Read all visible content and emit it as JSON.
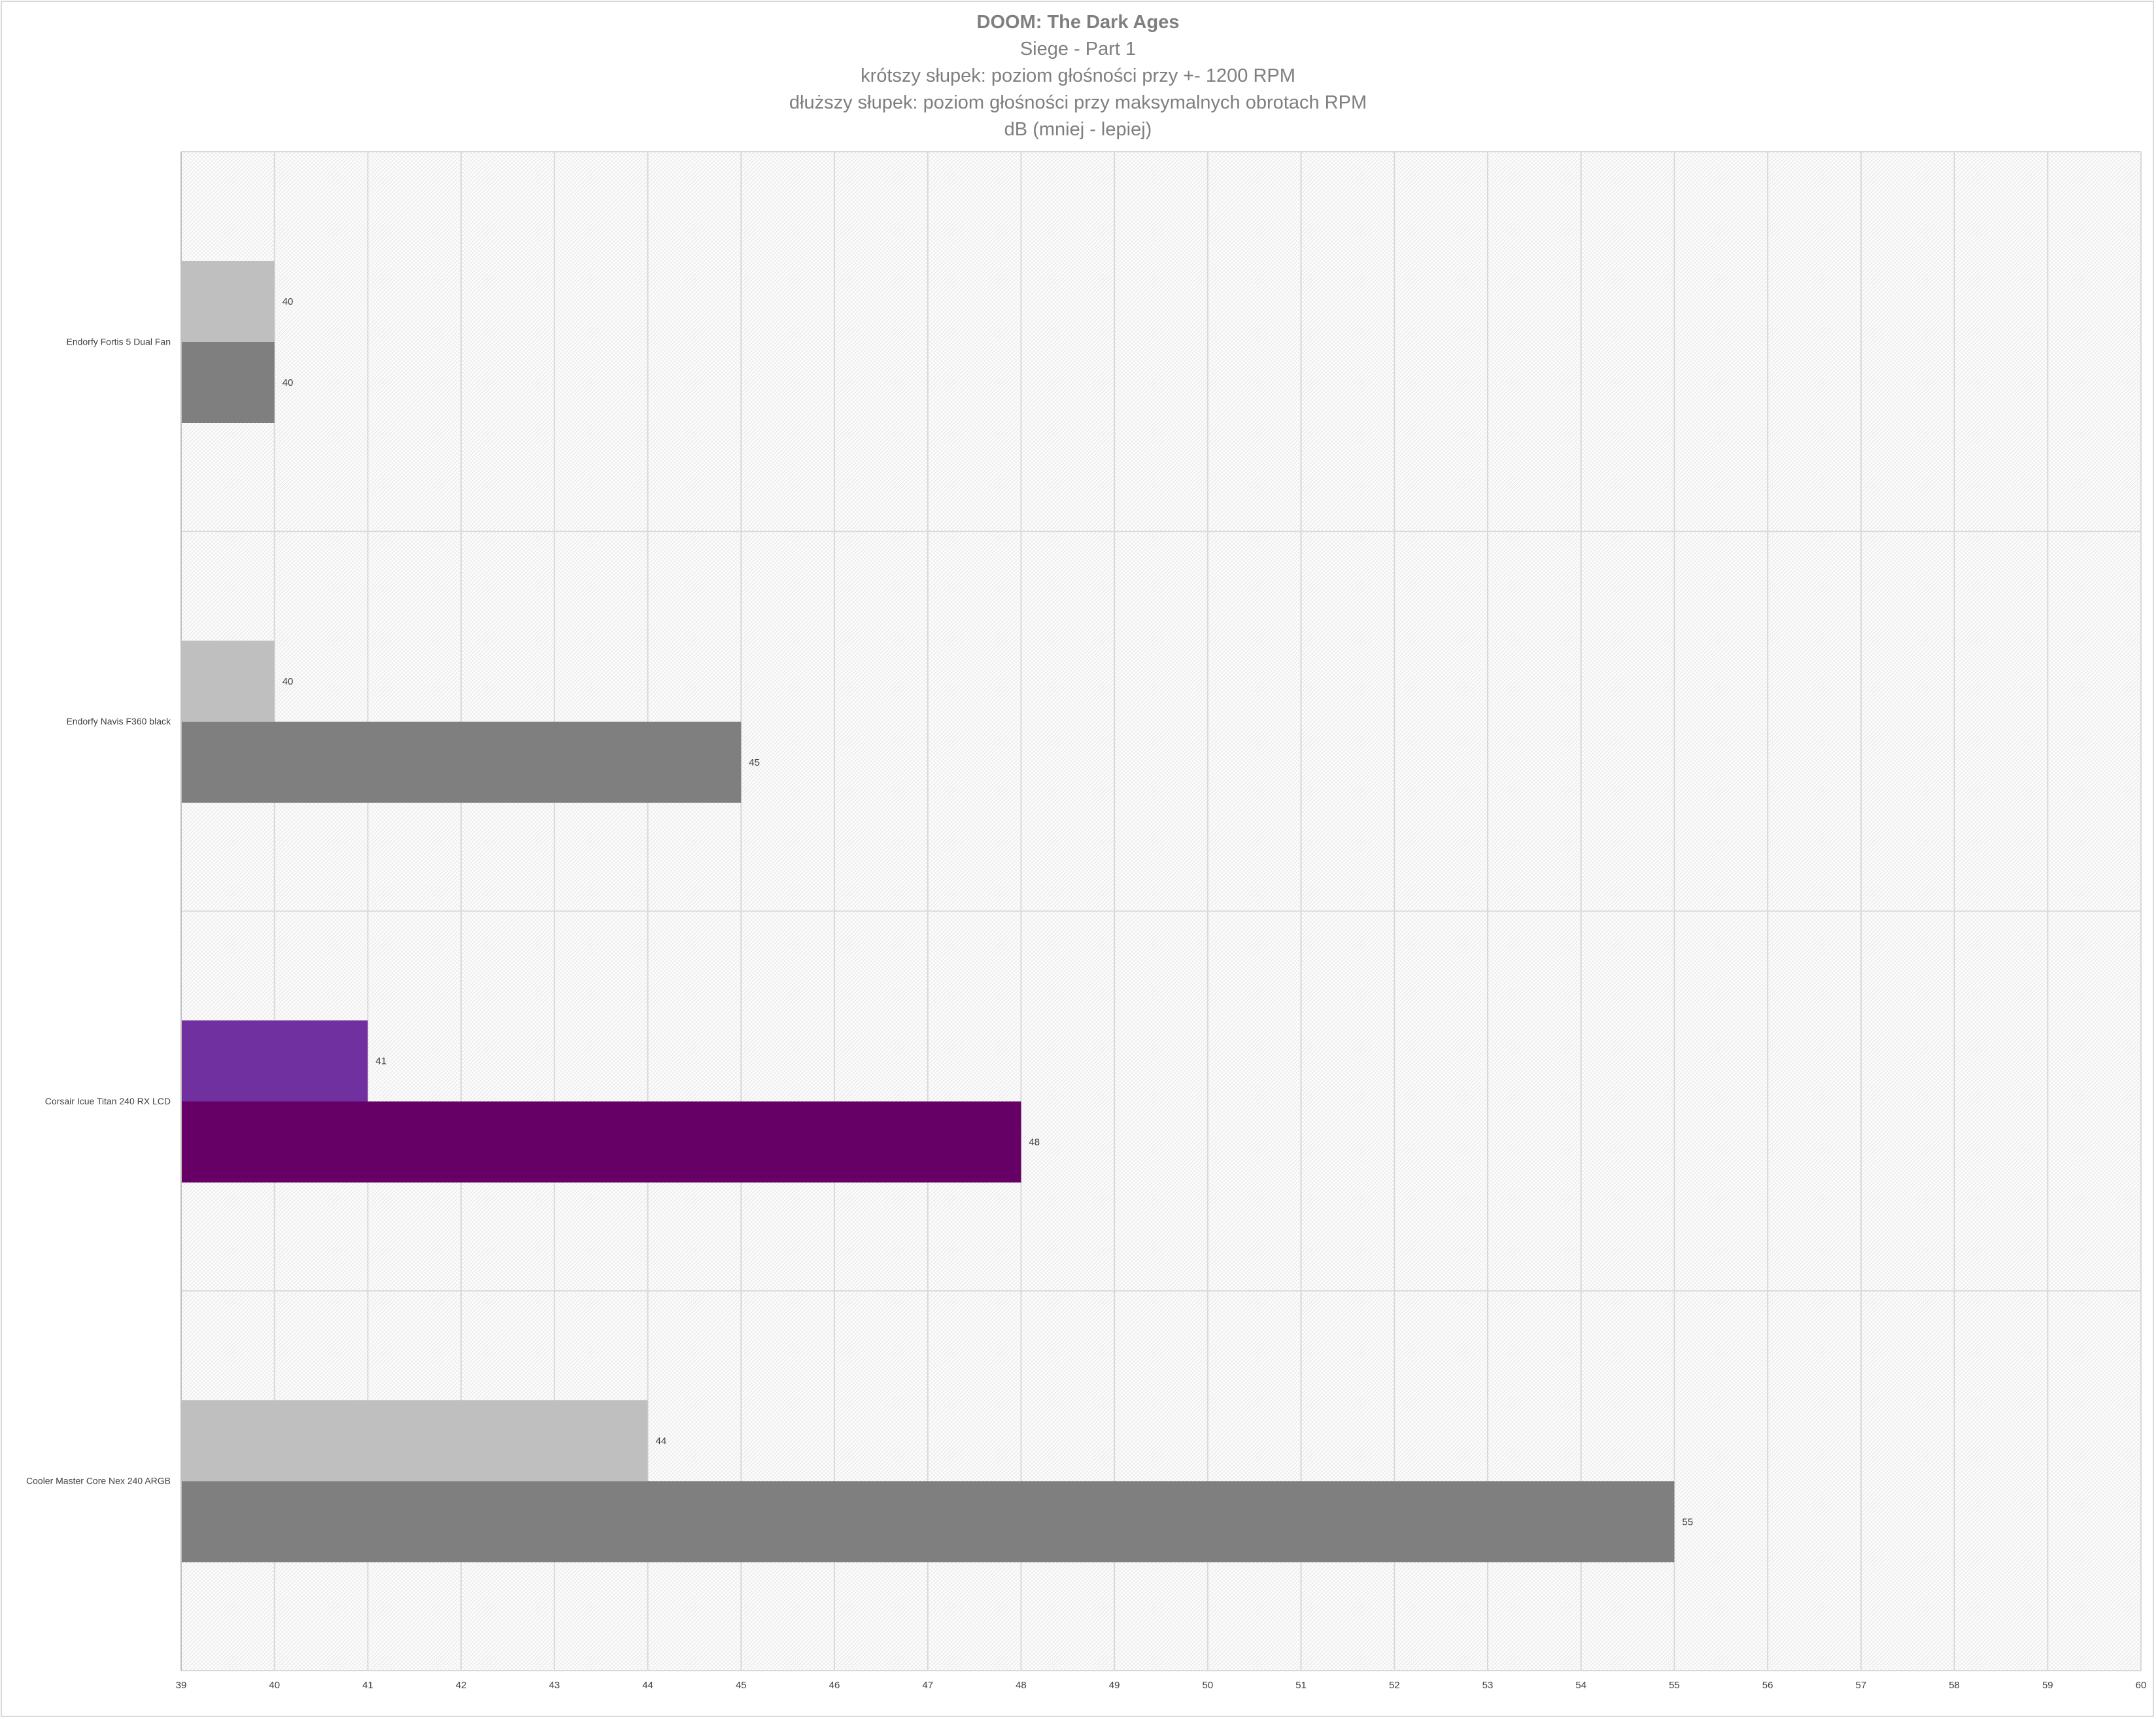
{
  "chart_data": {
    "type": "bar",
    "orientation": "horizontal",
    "title": "DOOM: The Dark Ages",
    "subtitles": [
      "Siege - Part 1",
      "krótszy słupek: poziom głośności przy +- 1200 RPM",
      "dłuższy słupek: poziom głośności przy maksymalnych obrotach RPM",
      "dB (mniej - lepiej)"
    ],
    "categories": [
      "Endorfy Fortis 5 Dual Fan",
      "Endorfy Navis F360 black",
      "Corsair Icue Titan 240 RX LCD",
      "Cooler Master Core Nex 240 ARGB"
    ],
    "series": [
      {
        "values": [
          40,
          40,
          41,
          44
        ],
        "colors": [
          "#bfbfbf",
          "#bfbfbf",
          "#7030a0",
          "#bfbfbf"
        ]
      },
      {
        "values": [
          40,
          45,
          48,
          55
        ],
        "colors": [
          "#7f7f7f",
          "#7f7f7f",
          "#660066",
          "#7f7f7f"
        ]
      }
    ],
    "xlim": [
      39,
      60
    ],
    "xticks": [
      39,
      40,
      41,
      42,
      43,
      44,
      45,
      46,
      47,
      48,
      49,
      50,
      51,
      52,
      53,
      54,
      55,
      56,
      57,
      58,
      59,
      60
    ],
    "grid": true,
    "legend": "none"
  }
}
